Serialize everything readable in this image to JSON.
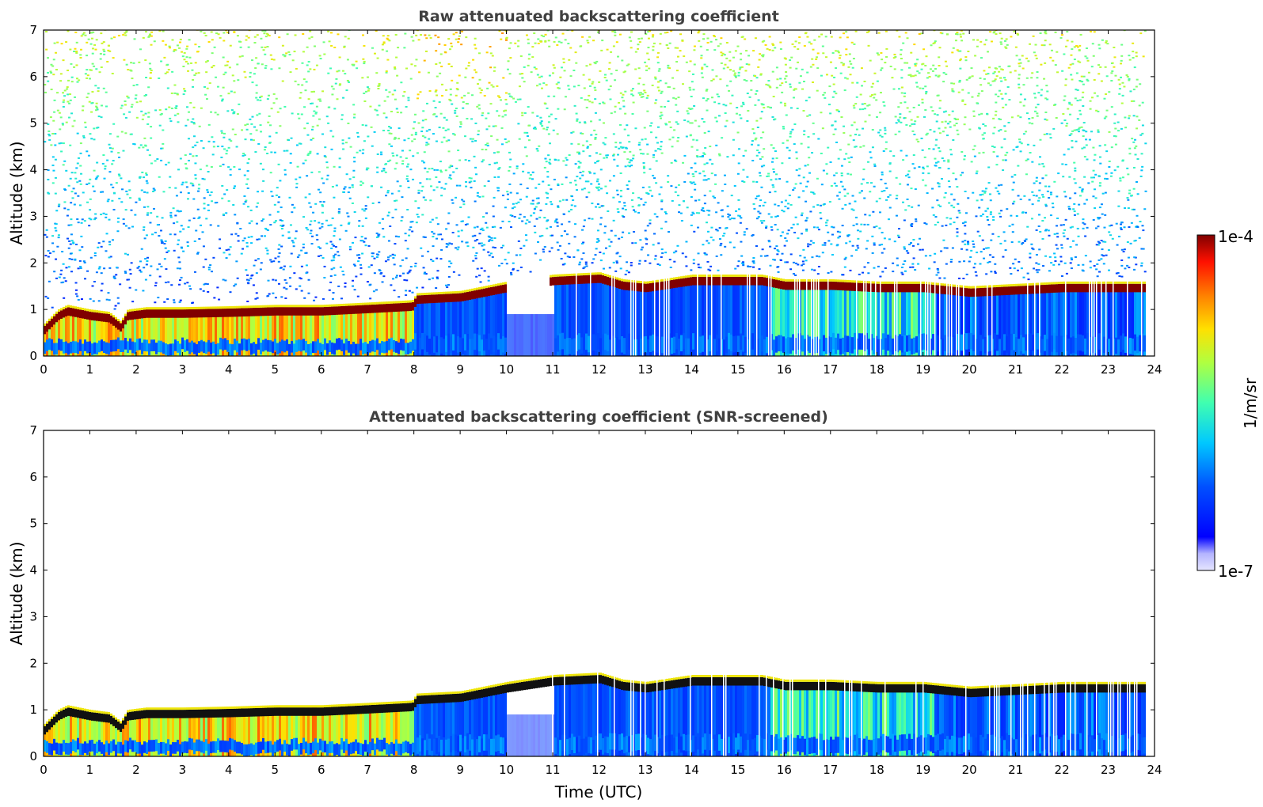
{
  "chart_data": [
    {
      "type": "heatmap",
      "title": "Raw attenuated backscattering coefficient",
      "xlabel": "",
      "ylabel": "Altitude (km)",
      "xlim": [
        0,
        24
      ],
      "ylim": [
        0,
        7
      ],
      "x_ticks": [
        "0",
        "1",
        "2",
        "3",
        "4",
        "5",
        "6",
        "7",
        "8",
        "9",
        "10",
        "11",
        "12",
        "13",
        "14",
        "15",
        "16",
        "17",
        "18",
        "19",
        "20",
        "21",
        "22",
        "23",
        "24"
      ],
      "y_ticks": [
        "0",
        "1",
        "2",
        "3",
        "4",
        "5",
        "6",
        "7"
      ],
      "layer_top_km": {
        "time": [
          0,
          0.3,
          0.5,
          1.0,
          1.4,
          1.65,
          1.8,
          2.2,
          3.0,
          4.0,
          5.0,
          6.0,
          7.0,
          7.95,
          8.05,
          9.0,
          10.0,
          11.0,
          12.0,
          12.5,
          13.0,
          14.0,
          15.0,
          15.5,
          16.0,
          17.0,
          18.0,
          19.0,
          20.0,
          21.0,
          22.0,
          23.0,
          23.8
        ],
        "height": [
          0.65,
          0.95,
          1.05,
          0.95,
          0.9,
          0.7,
          0.95,
          1.0,
          1.0,
          1.02,
          1.05,
          1.05,
          1.1,
          1.15,
          1.3,
          1.35,
          1.55,
          1.7,
          1.75,
          1.6,
          1.55,
          1.7,
          1.7,
          1.7,
          1.6,
          1.6,
          1.55,
          1.55,
          1.45,
          1.5,
          1.55,
          1.55,
          1.55
        ]
      },
      "colorbar": {
        "label": "1/m/sr",
        "min_label": "1e-7",
        "max_label": "1e-4"
      }
    },
    {
      "type": "heatmap",
      "title": "Attenuated backscattering coefficient (SNR-screened)",
      "xlabel": "Time (UTC)",
      "ylabel": "Altitude (km)",
      "xlim": [
        0,
        24
      ],
      "ylim": [
        0,
        7
      ],
      "x_ticks": [
        "0",
        "1",
        "2",
        "3",
        "4",
        "5",
        "6",
        "7",
        "8",
        "9",
        "10",
        "11",
        "12",
        "13",
        "14",
        "15",
        "16",
        "17",
        "18",
        "19",
        "20",
        "21",
        "22",
        "23",
        "24"
      ],
      "y_ticks": [
        "0",
        "1",
        "2",
        "3",
        "4",
        "5",
        "6",
        "7"
      ]
    }
  ],
  "colorbar": {
    "label": "1/m/sr",
    "max_label": "1e-4",
    "min_label": "1e-7"
  },
  "colors": {
    "layer": "#800000",
    "screened_layer": "#111111",
    "low": "#0000ff",
    "high": "#800000"
  }
}
